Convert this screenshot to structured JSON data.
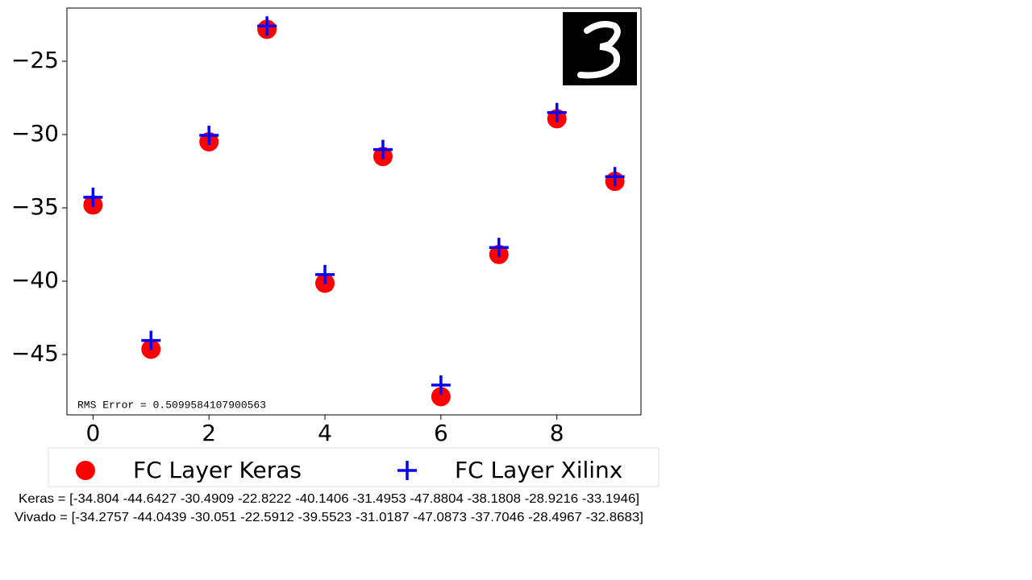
{
  "chart_data": {
    "type": "scatter",
    "x": [
      0,
      1,
      2,
      3,
      4,
      5,
      6,
      7,
      8,
      9
    ],
    "series": [
      {
        "name": "FC Layer Keras",
        "color": "#ff0000",
        "marker": "circle",
        "values": [
          -34.804,
          -44.6427,
          -30.4909,
          -22.8222,
          -40.1406,
          -31.4953,
          -47.8804,
          -38.1808,
          -28.9216,
          -33.1946
        ]
      },
      {
        "name": "FC Layer Xilinx",
        "color": "#0000ff",
        "marker": "plus",
        "values": [
          -34.2757,
          -44.0439,
          -30.051,
          -22.5912,
          -39.5523,
          -31.0187,
          -47.0873,
          -37.7046,
          -28.4967,
          -32.8683
        ]
      }
    ],
    "xlim": [
      -0.45,
      9.45
    ],
    "ylim": [
      -49.12,
      -21.37
    ],
    "xticks": [
      0,
      2,
      4,
      6,
      8
    ],
    "yticks": [
      {
        "value": -45,
        "label": "−45"
      },
      {
        "value": -40,
        "label": "−40"
      },
      {
        "value": -35,
        "label": "−35"
      },
      {
        "value": -30,
        "label": "−30"
      },
      {
        "value": -25,
        "label": "−25"
      }
    ],
    "legend": "below",
    "annotations": [
      "RMS Error = 0.5099584107900563"
    ],
    "notes": [
      "Keras = [-34.804 -44.6427 -30.4909 -22.8222 -40.1406 -31.4953 -47.8804 -38.1808 -28.9216 -33.1946]",
      "Vivado = [-34.2757 -44.0439 -30.051 -22.5912 -39.5523 -31.0187 -47.0873 -37.7046 -28.4967 -32.8683]"
    ]
  }
}
